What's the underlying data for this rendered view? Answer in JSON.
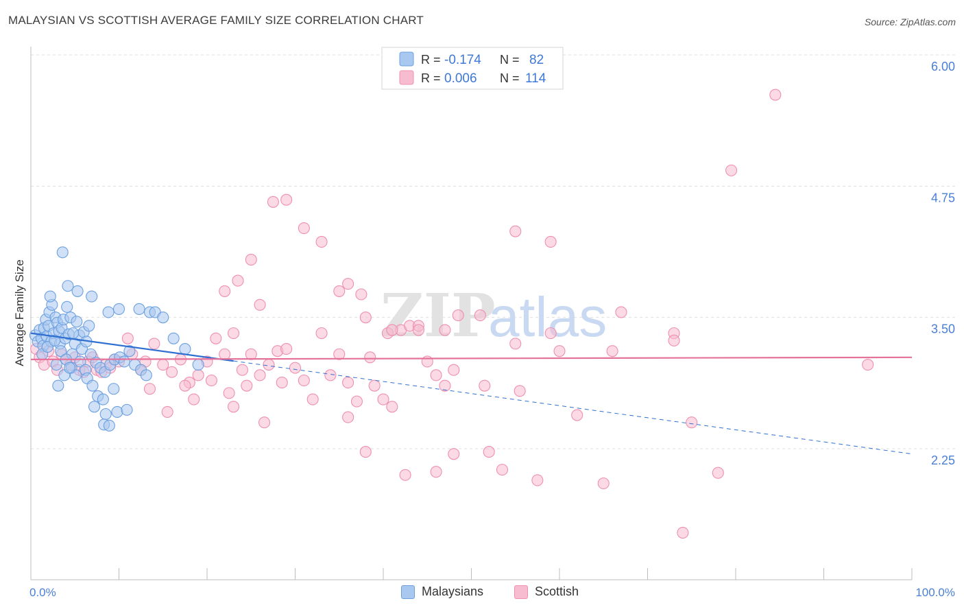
{
  "header": {
    "title": "MALAYSIAN VS SCOTTISH AVERAGE FAMILY SIZE CORRELATION CHART",
    "source": "Source: ZipAtlas.com"
  },
  "watermark": {
    "part1": "ZIP",
    "part2": "atlas"
  },
  "legend_top": [
    {
      "r_label": "R =",
      "r_value": "-0.174",
      "n_label": "N =",
      "n_value": "82"
    },
    {
      "r_label": "R =",
      "r_value": "0.006",
      "n_label": "N =",
      "n_value": "114"
    }
  ],
  "legend_bottom": [
    {
      "label": "Malaysians"
    },
    {
      "label": "Scottish"
    }
  ],
  "colors": {
    "blue_fill": "#a9c8f0",
    "blue_stroke": "#6b9fe0",
    "blue_line": "#2f6fd1",
    "pink_fill": "#f7bcd0",
    "pink_stroke": "#ee8fae",
    "pink_line": "#e4729a",
    "axis_label": "#4a7fd6",
    "grid": "#dddddd"
  },
  "chart_data": {
    "type": "scatter",
    "title": "MALAYSIAN VS SCOTTISH AVERAGE FAMILY SIZE CORRELATION CHART",
    "xlabel": "",
    "ylabel": "Average Family Size",
    "x_tick_labels": [
      "0.0%",
      "100.0%"
    ],
    "y_ticks": [
      2.25,
      3.5,
      4.75,
      6.0
    ],
    "y_tick_labels": [
      "2.25",
      "3.50",
      "4.75",
      "6.00"
    ],
    "xlim": [
      0,
      100
    ],
    "ylim": [
      1.0,
      6.1
    ],
    "grid": true,
    "legend_position": "top-center",
    "series": [
      {
        "name": "Malaysians",
        "r": -0.174,
        "n": 82,
        "trend": {
          "x0": 0,
          "y0": 3.35,
          "x1": 100,
          "y1": 2.2,
          "solid_until": 23
        },
        "points": [
          [
            0.5,
            3.33
          ],
          [
            0.8,
            3.27
          ],
          [
            1.0,
            3.38
          ],
          [
            1.2,
            3.3
          ],
          [
            1.4,
            3.23
          ],
          [
            1.5,
            3.4
          ],
          [
            1.7,
            3.48
          ],
          [
            1.8,
            3.32
          ],
          [
            2.0,
            3.42
          ],
          [
            2.1,
            3.55
          ],
          [
            2.3,
            3.27
          ],
          [
            2.4,
            3.62
          ],
          [
            2.6,
            3.35
          ],
          [
            2.8,
            3.5
          ],
          [
            3.0,
            3.45
          ],
          [
            3.2,
            3.37
          ],
          [
            3.3,
            3.25
          ],
          [
            3.5,
            3.4
          ],
          [
            3.7,
            3.48
          ],
          [
            3.9,
            3.3
          ],
          [
            4.1,
            3.6
          ],
          [
            4.3,
            3.34
          ],
          [
            4.5,
            3.5
          ],
          [
            4.7,
            3.15
          ],
          [
            5.0,
            3.25
          ],
          [
            5.2,
            3.46
          ],
          [
            5.5,
            3.33
          ],
          [
            5.8,
            3.2
          ],
          [
            6.0,
            3.36
          ],
          [
            6.3,
            3.27
          ],
          [
            6.6,
            3.42
          ],
          [
            6.9,
            3.7
          ],
          [
            1.3,
            3.15
          ],
          [
            1.9,
            3.22
          ],
          [
            2.2,
            3.7
          ],
          [
            2.7,
            3.28
          ],
          [
            3.4,
            3.18
          ],
          [
            4.0,
            3.1
          ],
          [
            4.6,
            3.02
          ],
          [
            5.1,
            2.95
          ],
          [
            5.6,
            3.08
          ],
          [
            6.2,
            3.0
          ],
          [
            6.8,
            3.15
          ],
          [
            7.4,
            3.07
          ],
          [
            7.9,
            3.02
          ],
          [
            8.4,
            2.98
          ],
          [
            9.0,
            3.05
          ],
          [
            9.5,
            3.1
          ],
          [
            3.6,
            4.12
          ],
          [
            4.2,
            3.8
          ],
          [
            5.3,
            3.75
          ],
          [
            6.4,
            2.92
          ],
          [
            7.0,
            2.85
          ],
          [
            7.6,
            2.75
          ],
          [
            8.2,
            2.72
          ],
          [
            9.4,
            2.82
          ],
          [
            10.1,
            3.12
          ],
          [
            10.6,
            3.08
          ],
          [
            11.2,
            3.18
          ],
          [
            11.8,
            3.05
          ],
          [
            12.5,
            3.0
          ],
          [
            13.1,
            2.95
          ],
          [
            2.9,
            3.05
          ],
          [
            3.8,
            2.95
          ],
          [
            4.4,
            3.02
          ],
          [
            8.8,
            3.55
          ],
          [
            10.0,
            3.58
          ],
          [
            12.3,
            3.58
          ],
          [
            13.5,
            3.55
          ],
          [
            14.1,
            3.55
          ],
          [
            15.0,
            3.5
          ],
          [
            16.2,
            3.3
          ],
          [
            17.5,
            3.2
          ],
          [
            19.0,
            3.05
          ],
          [
            7.2,
            2.65
          ],
          [
            8.5,
            2.58
          ],
          [
            9.8,
            2.6
          ],
          [
            10.9,
            2.62
          ],
          [
            8.3,
            2.48
          ],
          [
            8.9,
            2.47
          ],
          [
            3.1,
            2.85
          ],
          [
            4.8,
            3.35
          ]
        ]
      },
      {
        "name": "Scottish",
        "r": 0.006,
        "n": 114,
        "trend": {
          "x0": 0,
          "y0": 3.1,
          "x1": 100,
          "y1": 3.12
        },
        "points": [
          [
            0.6,
            3.2
          ],
          [
            1.0,
            3.12
          ],
          [
            1.5,
            3.05
          ],
          [
            2.0,
            3.18
          ],
          [
            2.5,
            3.08
          ],
          [
            3.0,
            3.0
          ],
          [
            3.5,
            3.15
          ],
          [
            4.0,
            3.1
          ],
          [
            4.5,
            3.05
          ],
          [
            5.0,
            3.12
          ],
          [
            5.5,
            3.0
          ],
          [
            6.0,
            2.98
          ],
          [
            6.5,
            3.08
          ],
          [
            7.0,
            3.12
          ],
          [
            7.5,
            3.0
          ],
          [
            8.0,
            2.98
          ],
          [
            8.5,
            3.05
          ],
          [
            9.0,
            3.02
          ],
          [
            9.5,
            3.1
          ],
          [
            10.0,
            3.08
          ],
          [
            11.0,
            3.3
          ],
          [
            11.5,
            3.15
          ],
          [
            12.5,
            3.0
          ],
          [
            13.0,
            3.08
          ],
          [
            14.0,
            3.25
          ],
          [
            15.0,
            3.05
          ],
          [
            16.0,
            2.98
          ],
          [
            17.0,
            3.1
          ],
          [
            18.0,
            2.88
          ],
          [
            19.0,
            2.95
          ],
          [
            20.0,
            3.08
          ],
          [
            21.0,
            3.3
          ],
          [
            22.0,
            3.15
          ],
          [
            23.0,
            3.35
          ],
          [
            24.0,
            3.0
          ],
          [
            25.0,
            3.15
          ],
          [
            26.0,
            2.95
          ],
          [
            27.0,
            3.05
          ],
          [
            28.0,
            3.18
          ],
          [
            29.0,
            3.2
          ],
          [
            13.5,
            2.82
          ],
          [
            15.5,
            2.6
          ],
          [
            17.5,
            2.85
          ],
          [
            18.5,
            2.72
          ],
          [
            20.5,
            2.9
          ],
          [
            22.5,
            2.78
          ],
          [
            24.5,
            2.85
          ],
          [
            26.5,
            2.5
          ],
          [
            28.5,
            2.88
          ],
          [
            30.0,
            3.02
          ],
          [
            31.0,
            2.9
          ],
          [
            32.0,
            2.72
          ],
          [
            33.0,
            3.35
          ],
          [
            34.0,
            2.95
          ],
          [
            35.0,
            3.15
          ],
          [
            36.0,
            2.88
          ],
          [
            37.0,
            2.7
          ],
          [
            38.0,
            3.5
          ],
          [
            38.5,
            3.12
          ],
          [
            39.0,
            2.85
          ],
          [
            40.0,
            2.72
          ],
          [
            41.0,
            2.65
          ],
          [
            42.0,
            3.38
          ],
          [
            43.0,
            3.42
          ],
          [
            44.0,
            3.42
          ],
          [
            45.0,
            3.08
          ],
          [
            46.0,
            2.95
          ],
          [
            47.0,
            2.85
          ],
          [
            48.0,
            3.0
          ],
          [
            22.0,
            3.75
          ],
          [
            23.5,
            3.85
          ],
          [
            25.0,
            4.05
          ],
          [
            26.0,
            3.62
          ],
          [
            27.5,
            4.6
          ],
          [
            29.0,
            4.62
          ],
          [
            31.0,
            4.35
          ],
          [
            33.0,
            4.22
          ],
          [
            35.0,
            3.75
          ],
          [
            36.0,
            3.82
          ],
          [
            37.5,
            3.72
          ],
          [
            40.5,
            3.35
          ],
          [
            41.0,
            3.38
          ],
          [
            44.0,
            3.38
          ],
          [
            47.0,
            3.38
          ],
          [
            48.5,
            3.52
          ],
          [
            51.0,
            3.52
          ],
          [
            55.0,
            3.25
          ],
          [
            59.0,
            3.35
          ],
          [
            67.0,
            3.55
          ],
          [
            73.0,
            3.35
          ],
          [
            48.0,
            2.2
          ],
          [
            52.0,
            2.22
          ],
          [
            53.5,
            2.05
          ],
          [
            57.5,
            1.95
          ],
          [
            65.0,
            1.92
          ],
          [
            95.0,
            3.05
          ],
          [
            38.0,
            2.22
          ],
          [
            42.5,
            2.0
          ],
          [
            46.0,
            2.03
          ],
          [
            62.0,
            2.57
          ],
          [
            75.0,
            2.5
          ],
          [
            78.0,
            2.02
          ],
          [
            74.0,
            1.45
          ],
          [
            73.0,
            3.28
          ],
          [
            55.0,
            4.32
          ],
          [
            59.0,
            4.22
          ],
          [
            79.5,
            4.9
          ],
          [
            84.5,
            5.62
          ],
          [
            51.5,
            2.85
          ],
          [
            55.5,
            2.8
          ],
          [
            60.0,
            3.18
          ],
          [
            66.0,
            3.18
          ],
          [
            23.0,
            2.65
          ],
          [
            36.0,
            2.55
          ]
        ]
      }
    ]
  }
}
